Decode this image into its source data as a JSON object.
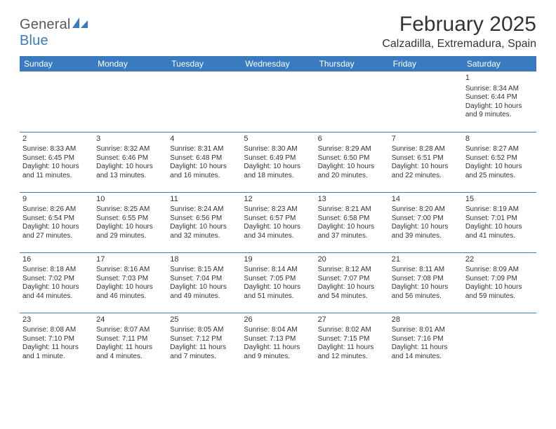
{
  "logo": {
    "text_general": "General",
    "text_blue": "Blue"
  },
  "title": "February 2025",
  "location": "Calzadilla, Extremadura, Spain",
  "colors": {
    "header_bg": "#3a7bbf",
    "header_text": "#ffffff",
    "grid_line": "#3a7bbf",
    "body_text": "#333333",
    "page_bg": "#ffffff",
    "logo_gray": "#555a60",
    "logo_blue": "#3a7bbf"
  },
  "typography": {
    "title_fontsize": 30,
    "location_fontsize": 16,
    "dayheader_fontsize": 12,
    "daynum_fontsize": 11,
    "cell_fontsize": 10,
    "logo_fontsize": 20
  },
  "day_headers": [
    "Sunday",
    "Monday",
    "Tuesday",
    "Wednesday",
    "Thursday",
    "Friday",
    "Saturday"
  ],
  "weeks": [
    [
      null,
      null,
      null,
      null,
      null,
      null,
      {
        "n": "1",
        "sunrise": "8:34 AM",
        "sunset": "6:44 PM",
        "daylight": "10 hours and 9 minutes."
      }
    ],
    [
      {
        "n": "2",
        "sunrise": "8:33 AM",
        "sunset": "6:45 PM",
        "daylight": "10 hours and 11 minutes."
      },
      {
        "n": "3",
        "sunrise": "8:32 AM",
        "sunset": "6:46 PM",
        "daylight": "10 hours and 13 minutes."
      },
      {
        "n": "4",
        "sunrise": "8:31 AM",
        "sunset": "6:48 PM",
        "daylight": "10 hours and 16 minutes."
      },
      {
        "n": "5",
        "sunrise": "8:30 AM",
        "sunset": "6:49 PM",
        "daylight": "10 hours and 18 minutes."
      },
      {
        "n": "6",
        "sunrise": "8:29 AM",
        "sunset": "6:50 PM",
        "daylight": "10 hours and 20 minutes."
      },
      {
        "n": "7",
        "sunrise": "8:28 AM",
        "sunset": "6:51 PM",
        "daylight": "10 hours and 22 minutes."
      },
      {
        "n": "8",
        "sunrise": "8:27 AM",
        "sunset": "6:52 PM",
        "daylight": "10 hours and 25 minutes."
      }
    ],
    [
      {
        "n": "9",
        "sunrise": "8:26 AM",
        "sunset": "6:54 PM",
        "daylight": "10 hours and 27 minutes."
      },
      {
        "n": "10",
        "sunrise": "8:25 AM",
        "sunset": "6:55 PM",
        "daylight": "10 hours and 29 minutes."
      },
      {
        "n": "11",
        "sunrise": "8:24 AM",
        "sunset": "6:56 PM",
        "daylight": "10 hours and 32 minutes."
      },
      {
        "n": "12",
        "sunrise": "8:23 AM",
        "sunset": "6:57 PM",
        "daylight": "10 hours and 34 minutes."
      },
      {
        "n": "13",
        "sunrise": "8:21 AM",
        "sunset": "6:58 PM",
        "daylight": "10 hours and 37 minutes."
      },
      {
        "n": "14",
        "sunrise": "8:20 AM",
        "sunset": "7:00 PM",
        "daylight": "10 hours and 39 minutes."
      },
      {
        "n": "15",
        "sunrise": "8:19 AM",
        "sunset": "7:01 PM",
        "daylight": "10 hours and 41 minutes."
      }
    ],
    [
      {
        "n": "16",
        "sunrise": "8:18 AM",
        "sunset": "7:02 PM",
        "daylight": "10 hours and 44 minutes."
      },
      {
        "n": "17",
        "sunrise": "8:16 AM",
        "sunset": "7:03 PM",
        "daylight": "10 hours and 46 minutes."
      },
      {
        "n": "18",
        "sunrise": "8:15 AM",
        "sunset": "7:04 PM",
        "daylight": "10 hours and 49 minutes."
      },
      {
        "n": "19",
        "sunrise": "8:14 AM",
        "sunset": "7:05 PM",
        "daylight": "10 hours and 51 minutes."
      },
      {
        "n": "20",
        "sunrise": "8:12 AM",
        "sunset": "7:07 PM",
        "daylight": "10 hours and 54 minutes."
      },
      {
        "n": "21",
        "sunrise": "8:11 AM",
        "sunset": "7:08 PM",
        "daylight": "10 hours and 56 minutes."
      },
      {
        "n": "22",
        "sunrise": "8:09 AM",
        "sunset": "7:09 PM",
        "daylight": "10 hours and 59 minutes."
      }
    ],
    [
      {
        "n": "23",
        "sunrise": "8:08 AM",
        "sunset": "7:10 PM",
        "daylight": "11 hours and 1 minute."
      },
      {
        "n": "24",
        "sunrise": "8:07 AM",
        "sunset": "7:11 PM",
        "daylight": "11 hours and 4 minutes."
      },
      {
        "n": "25",
        "sunrise": "8:05 AM",
        "sunset": "7:12 PM",
        "daylight": "11 hours and 7 minutes."
      },
      {
        "n": "26",
        "sunrise": "8:04 AM",
        "sunset": "7:13 PM",
        "daylight": "11 hours and 9 minutes."
      },
      {
        "n": "27",
        "sunrise": "8:02 AM",
        "sunset": "7:15 PM",
        "daylight": "11 hours and 12 minutes."
      },
      {
        "n": "28",
        "sunrise": "8:01 AM",
        "sunset": "7:16 PM",
        "daylight": "11 hours and 14 minutes."
      },
      null
    ]
  ],
  "labels": {
    "sunrise": "Sunrise:",
    "sunset": "Sunset:",
    "daylight": "Daylight:"
  }
}
